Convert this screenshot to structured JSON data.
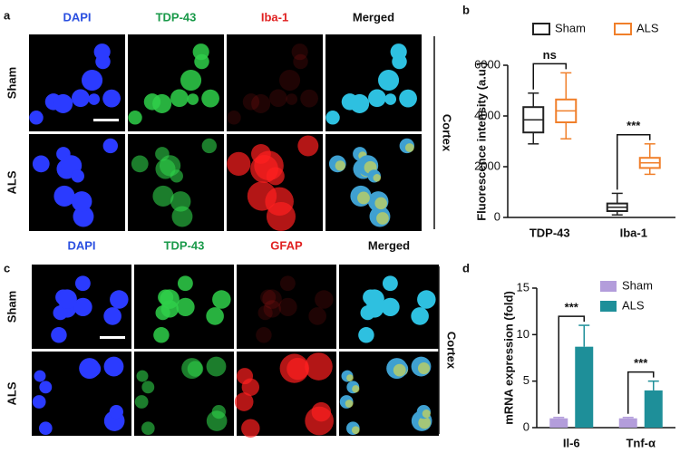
{
  "micrographs": [
    {
      "panel": "a",
      "channels": [
        "DAPI",
        "TDP-43",
        "Iba-1",
        "Merged"
      ],
      "rows": [
        "Sham",
        "ALS"
      ],
      "region": "Cortex"
    },
    {
      "panel": "c",
      "channels": [
        "DAPI",
        "TDP-43",
        "GFAP",
        "Merged"
      ],
      "rows": [
        "Sham",
        "ALS"
      ],
      "region": "Cortex"
    }
  ],
  "chart_data": [
    {
      "type": "box",
      "panel": "b",
      "y_label": "Fluorescence intensity (a.u.)",
      "categories": [
        "TDP-43",
        "Iba-1"
      ],
      "series": [
        {
          "name": "Sham",
          "color": "#222222",
          "values": [
            {
              "min": 2900,
              "q1": 3350,
              "median": 3850,
              "q3": 4350,
              "max": 4900
            },
            {
              "min": 100,
              "q1": 250,
              "median": 400,
              "q3": 550,
              "max": 950
            }
          ]
        },
        {
          "name": "ALS",
          "color": "#f07f2a",
          "values": [
            {
              "min": 3100,
              "q1": 3750,
              "median": 4200,
              "q3": 4650,
              "max": 5700
            },
            {
              "min": 1700,
              "q1": 1950,
              "median": 2150,
              "q3": 2350,
              "max": 2900
            }
          ]
        }
      ],
      "ylim": [
        0,
        6000
      ],
      "yticks": [
        0,
        2000,
        4000,
        6000
      ],
      "annotations": [
        "ns",
        "***"
      ]
    },
    {
      "type": "bar",
      "panel": "d",
      "y_label": "mRNA expression (fold)",
      "categories": [
        "Il-6",
        "Tnf-α"
      ],
      "series": [
        {
          "name": "Sham",
          "color": "#b39ddb",
          "values": [
            1,
            1
          ],
          "errors": [
            0.1,
            0.1
          ]
        },
        {
          "name": "ALS",
          "color": "#1e8f99",
          "values": [
            8.7,
            4.0
          ],
          "errors": [
            2.3,
            1.0
          ]
        }
      ],
      "ylim": [
        0,
        15
      ],
      "yticks": [
        0,
        5,
        10,
        15
      ],
      "annotations": [
        "***",
        "***"
      ]
    }
  ]
}
